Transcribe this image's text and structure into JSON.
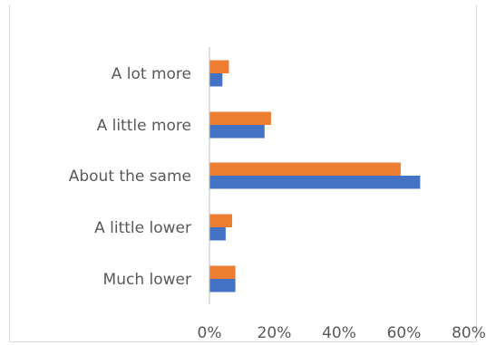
{
  "chart_data": {
    "type": "bar",
    "orientation": "horizontal",
    "title": "",
    "xlabel": "",
    "ylabel": "",
    "categories": [
      "A lot more",
      "A little more",
      "About the same",
      "A little lower",
      "Much lower"
    ],
    "series": [
      {
        "values": [
          4,
          17,
          65,
          5,
          8
        ],
        "color": "#4472c4"
      },
      {
        "values": [
          6,
          19,
          59,
          7,
          8
        ],
        "color": "#ed7d31"
      }
    ],
    "xlim": [
      0,
      80
    ],
    "x_ticks": [
      "0%",
      "20%",
      "40%",
      "60%",
      "80%"
    ],
    "grid": false,
    "legend": "none"
  }
}
